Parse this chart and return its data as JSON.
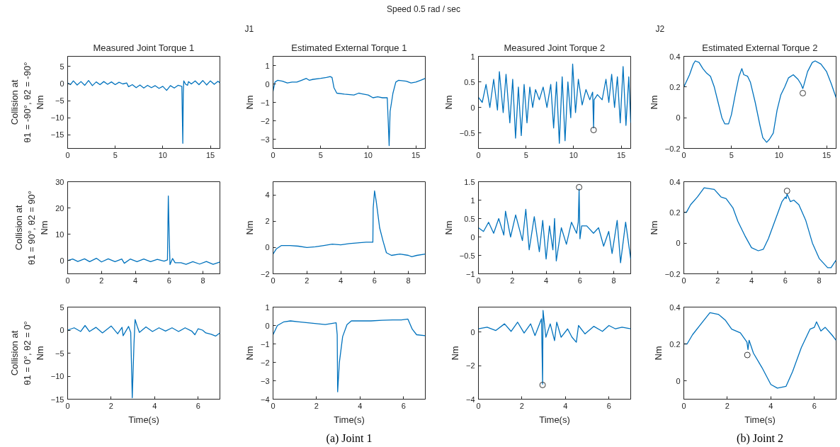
{
  "chart_data": [
    {
      "type": "line",
      "title": "Measured Joint Torque 1",
      "ylabel": "Collision at\nθ1 = -90°, θ2 = -90°\nNm",
      "xlim": [
        0,
        16
      ],
      "xticks": [
        0,
        5,
        10,
        15
      ],
      "ylim": [
        -19,
        8
      ],
      "yticks": [
        -15,
        -10,
        -5,
        0,
        5
      ],
      "series": [
        {
          "color": "#0072bd",
          "x": [
            0,
            0.3,
            0.6,
            1,
            1.4,
            1.8,
            2.2,
            2.6,
            3,
            3.4,
            3.8,
            4.2,
            4.6,
            5,
            5.4,
            5.8,
            6.2,
            6.4,
            6.8,
            7.2,
            7.6,
            8,
            8.4,
            8.8,
            9.2,
            9.6,
            10,
            10.4,
            10.8,
            11.2,
            11.6,
            12,
            12.1,
            12.15,
            12.2,
            12.4,
            12.6,
            12.7,
            13,
            13.4,
            13.8,
            14.2,
            14.6,
            15,
            15.4,
            15.8,
            16
          ],
          "values": [
            0.2,
            -0.3,
            0.8,
            -0.4,
            0.6,
            -0.5,
            0.9,
            -0.6,
            0.5,
            -0.3,
            0.6,
            -0.2,
            0.5,
            -0.3,
            0.4,
            -0.1,
            0.2,
            -0.9,
            -0.3,
            -1.2,
            -0.4,
            -1.3,
            -0.5,
            -1.2,
            -0.6,
            -1.4,
            -0.8,
            -2.0,
            -0.6,
            -1.3,
            -0.5,
            -0.8,
            -17.5,
            -3,
            0.8,
            -0.2,
            -0.5,
            0.6,
            -0.1,
            0.8,
            -0.3,
            0.9,
            -0.4,
            0.8,
            -0.2,
            0.7,
            0.2
          ]
        }
      ]
    },
    {
      "type": "line",
      "title": "Estimated External Torque 1",
      "ylabel": "Nm",
      "annotations": [
        "J1"
      ],
      "xlim": [
        0,
        16
      ],
      "xticks": [
        0,
        5,
        10,
        15
      ],
      "ylim": [
        -3.5,
        1.5
      ],
      "yticks": [
        -3,
        -2,
        -1,
        0,
        1
      ],
      "series": [
        {
          "color": "#0072bd",
          "x": [
            0,
            0.2,
            0.5,
            1,
            1.5,
            2,
            2.5,
            3,
            3.5,
            3.8,
            4.2,
            5,
            5.6,
            6,
            6.2,
            6.4,
            6.7,
            7.5,
            8.5,
            9,
            9.5,
            10,
            10.5,
            11,
            11.5,
            12,
            12.1,
            12.2,
            12.3,
            12.6,
            12.9,
            13.2,
            14,
            14.5,
            15,
            15.5,
            16
          ],
          "values": [
            -0.4,
            0.1,
            0.2,
            0.15,
            0.05,
            0.1,
            0.1,
            0.2,
            0.3,
            0.2,
            0.25,
            0.3,
            0.35,
            0.4,
            0.35,
            -0.2,
            -0.5,
            -0.55,
            -0.6,
            -0.5,
            -0.55,
            -0.6,
            -0.75,
            -0.7,
            -0.75,
            -0.75,
            -2,
            -3.35,
            -1.5,
            -0.5,
            0.1,
            0.2,
            0.15,
            0.05,
            0.1,
            0.2,
            0.3
          ]
        }
      ]
    },
    {
      "type": "line",
      "title": "Measured Joint Torque 2",
      "ylabel": "Nm",
      "annotations": [
        "Speed 0.5 rad / sec"
      ],
      "xlim": [
        0,
        16
      ],
      "xticks": [
        0,
        5,
        10,
        15
      ],
      "ylim": [
        -0.8,
        1
      ],
      "yticks": [
        -0.5,
        0,
        0.5,
        1
      ],
      "series": [
        {
          "color": "#0072bd",
          "x": [
            0,
            0.4,
            0.8,
            1.2,
            1.6,
            2,
            2.2,
            2.6,
            2.9,
            3.3,
            3.6,
            3.9,
            4.2,
            4.5,
            4.8,
            5.1,
            5.4,
            5.7,
            6,
            6.4,
            6.8,
            7.2,
            7.6,
            7.9,
            8.2,
            8.5,
            8.8,
            9.1,
            9.4,
            9.7,
            9.9,
            10.2,
            10.5,
            10.9,
            11.3,
            11.7,
            12,
            12.1,
            12.15,
            12.5,
            13,
            13.4,
            13.7,
            14,
            14.3,
            14.6,
            14.9,
            15.2,
            15.5,
            15.8,
            16
          ],
          "values": [
            0.2,
            0.1,
            0.45,
            0.0,
            0.55,
            -0.05,
            0.7,
            -0.1,
            0.65,
            -0.3,
            0.55,
            -0.6,
            0.4,
            -0.55,
            0.45,
            -0.3,
            0.4,
            0.0,
            0.35,
            0.15,
            0.4,
            0.0,
            0.45,
            -0.4,
            0.5,
            -0.7,
            0.6,
            -0.65,
            0.5,
            -0.2,
            0.85,
            -0.1,
            0.55,
            0.05,
            0.35,
            0.15,
            0.3,
            -0.4,
            0.15,
            0.25,
            0.15,
            0.55,
            0.1,
            0.65,
            0.0,
            0.6,
            -0.3,
            0.8,
            -0.35,
            0.6,
            -0.3
          ]
        },
        {
          "type": "scatter",
          "marker": "circle",
          "color": "#333333",
          "x": [
            12.1
          ],
          "values": [
            -0.44
          ]
        }
      ]
    },
    {
      "type": "line",
      "title": "Estimated External Torque 2",
      "ylabel": "Nm",
      "annotations": [
        "J2"
      ],
      "xlim": [
        0,
        16
      ],
      "xticks": [
        0,
        5,
        10,
        15
      ],
      "ylim": [
        -0.2,
        0.4
      ],
      "yticks": [
        -0.2,
        0,
        0.2,
        0.4
      ],
      "series": [
        {
          "color": "#0072bd",
          "x": [
            0,
            0.3,
            0.6,
            1,
            1.2,
            1.6,
            2,
            2.4,
            2.8,
            3.2,
            3.6,
            4,
            4.3,
            4.7,
            5,
            5.4,
            5.8,
            6.1,
            6.3,
            6.7,
            7,
            7.5,
            8,
            8.3,
            8.7,
            9,
            9.4,
            9.8,
            10.2,
            10.6,
            11,
            11.5,
            12,
            12.3,
            12.5,
            12.6,
            13,
            13.5,
            13.8,
            14.4,
            15,
            15.5,
            16
          ],
          "values": [
            0.2,
            0.24,
            0.28,
            0.35,
            0.37,
            0.36,
            0.32,
            0.29,
            0.27,
            0.2,
            0.1,
            0.0,
            -0.04,
            -0.04,
            0.02,
            0.15,
            0.27,
            0.32,
            0.28,
            0.27,
            0.23,
            0.1,
            -0.05,
            -0.13,
            -0.16,
            -0.14,
            -0.1,
            0.05,
            0.15,
            0.2,
            0.26,
            0.28,
            0.25,
            0.22,
            0.19,
            0.21,
            0.3,
            0.36,
            0.37,
            0.35,
            0.3,
            0.22,
            0.13
          ]
        },
        {
          "type": "scatter",
          "marker": "circle",
          "color": "#333333",
          "x": [
            12.5
          ],
          "values": [
            0.16
          ]
        }
      ]
    },
    {
      "type": "line",
      "ylabel": "Collision at\nθ1 = 90°, θ2 = 90°\nNm",
      "xlim": [
        0,
        9
      ],
      "xticks": [
        0,
        2,
        4,
        6,
        8
      ],
      "ylim": [
        -5,
        30
      ],
      "yticks": [
        0,
        10,
        20,
        30
      ],
      "series": [
        {
          "color": "#0072bd",
          "x": [
            0,
            0.3,
            0.6,
            1,
            1.3,
            1.7,
            2,
            2.4,
            2.8,
            3.2,
            3.35,
            3.7,
            4.1,
            4.5,
            4.9,
            5.3,
            5.7,
            5.9,
            5.95,
            6.0,
            6.05,
            6.2,
            6.35,
            6.7,
            7,
            7.4,
            7.8,
            8.2,
            8.6,
            9
          ],
          "values": [
            0,
            0.6,
            -0.3,
            0.7,
            -0.4,
            0.9,
            -0.5,
            0.7,
            -0.4,
            0.6,
            -1.0,
            0.6,
            -0.4,
            0.6,
            -0.4,
            0.5,
            -0.2,
            0.3,
            24.6,
            10,
            -1.5,
            0.8,
            -0.8,
            -0.8,
            -1.4,
            -0.4,
            -1.3,
            -0.3,
            -1.4,
            -0.5
          ]
        }
      ]
    },
    {
      "type": "line",
      "ylabel": "Nm",
      "xlim": [
        0,
        9
      ],
      "xticks": [
        0,
        2,
        4,
        6,
        8
      ],
      "ylim": [
        -2,
        5
      ],
      "yticks": [
        -2,
        0,
        2,
        4
      ],
      "series": [
        {
          "color": "#0072bd",
          "x": [
            0,
            0.2,
            0.5,
            1,
            1.5,
            2,
            2.5,
            3,
            3.5,
            4,
            4.5,
            5,
            5.5,
            5.9,
            5.92,
            6.0,
            6.1,
            6.3,
            6.5,
            6.7,
            7,
            7.5,
            8,
            8.2,
            8.5,
            9
          ],
          "values": [
            -0.5,
            -0.1,
            0.15,
            0.15,
            0.1,
            0.0,
            0.05,
            0.15,
            0.25,
            0.2,
            0.3,
            0.35,
            0.4,
            0.4,
            3,
            4.3,
            3.5,
            1.5,
            0.5,
            -0.4,
            -0.6,
            -0.5,
            -0.6,
            -0.7,
            -0.6,
            -0.5
          ]
        }
      ]
    },
    {
      "type": "line",
      "ylabel": "Nm",
      "xlim": [
        0,
        9
      ],
      "xticks": [
        0,
        2,
        4,
        6,
        8
      ],
      "ylim": [
        -1,
        1.5
      ],
      "yticks": [
        -1,
        -0.5,
        0,
        0.5,
        1,
        1.5
      ],
      "series": [
        {
          "color": "#0072bd",
          "x": [
            0,
            0.3,
            0.6,
            0.9,
            1.2,
            1.5,
            1.6,
            1.9,
            2.2,
            2.6,
            2.8,
            3,
            3.3,
            3.6,
            3.8,
            4.0,
            4.2,
            4.4,
            4.5,
            4.6,
            4.9,
            5.2,
            5.5,
            5.8,
            5.9,
            5.95,
            6.0,
            6.1,
            6.4,
            6.8,
            7.1,
            7.4,
            7.7,
            7.9,
            8.2,
            8.4,
            8.7,
            9
          ],
          "values": [
            0.25,
            0.15,
            0.4,
            0.1,
            0.5,
            0.05,
            0.7,
            0.0,
            0.6,
            -0.1,
            0.75,
            -0.35,
            0.55,
            -0.4,
            0.45,
            -0.6,
            0.3,
            -0.35,
            0.5,
            -0.65,
            0.25,
            -0.2,
            0.4,
            0.1,
            0.4,
            1.3,
            -0.05,
            0.3,
            0.3,
            0.1,
            0.25,
            -0.25,
            0.15,
            -0.45,
            0.45,
            -0.7,
            0.4,
            -0.6
          ]
        },
        {
          "type": "scatter",
          "marker": "circle",
          "color": "#333333",
          "x": [
            5.95
          ],
          "values": [
            1.35
          ]
        }
      ]
    },
    {
      "type": "line",
      "ylabel": "Nm",
      "xlim": [
        0,
        9
      ],
      "xticks": [
        0,
        2,
        4,
        6,
        8
      ],
      "ylim": [
        -0.2,
        0.4
      ],
      "yticks": [
        -0.2,
        0,
        0.2,
        0.4
      ],
      "series": [
        {
          "color": "#0072bd",
          "x": [
            0,
            0.15,
            0.4,
            0.8,
            1.2,
            1.8,
            2.2,
            2.5,
            2.9,
            3.2,
            3.6,
            4.0,
            4.4,
            4.7,
            5,
            5.4,
            5.8,
            6.0,
            6.05,
            6.1,
            6.3,
            6.5,
            6.8,
            7.2,
            7.6,
            8,
            8.5,
            8.7,
            9
          ],
          "values": [
            0.2,
            0.2,
            0.25,
            0.3,
            0.36,
            0.35,
            0.3,
            0.29,
            0.23,
            0.14,
            0.05,
            -0.03,
            -0.05,
            -0.04,
            0.03,
            0.15,
            0.27,
            0.3,
            0.29,
            0.32,
            0.27,
            0.28,
            0.25,
            0.15,
            0.0,
            -0.1,
            -0.16,
            -0.16,
            -0.11
          ]
        },
        {
          "type": "scatter",
          "marker": "circle",
          "color": "#333333",
          "x": [
            6.1
          ],
          "values": [
            0.34
          ]
        }
      ]
    },
    {
      "type": "line",
      "xlabel": "Time(s)",
      "ylabel": "Collision at\nθ1 = 0°, θ2 = 0°\nNm",
      "xlim": [
        0,
        7
      ],
      "xticks": [
        0,
        2,
        4,
        6
      ],
      "ylim": [
        -15,
        5
      ],
      "yticks": [
        -15,
        -10,
        -5,
        0,
        5
      ],
      "series": [
        {
          "color": "#0072bd",
          "x": [
            0,
            0.3,
            0.6,
            0.8,
            1.0,
            1.3,
            1.6,
            2,
            2.3,
            2.5,
            2.55,
            2.8,
            2.9,
            2.97,
            3.05,
            3.1,
            3.2,
            3.3,
            3.6,
            3.9,
            4.2,
            4.5,
            4.8,
            5.1,
            5.4,
            5.7,
            5.85,
            6,
            6.2,
            6.35,
            6.6,
            6.8,
            7
          ],
          "values": [
            0,
            0.5,
            -0.3,
            1.0,
            -0.3,
            0.6,
            -0.6,
            0.9,
            -0.8,
            0.6,
            -1.2,
            0.8,
            -0.5,
            -14.7,
            -3,
            2.3,
            0.8,
            -0.5,
            0.7,
            -0.3,
            0.5,
            -0.2,
            0.5,
            -0.3,
            0.5,
            -0.2,
            -1.0,
            0.3,
            0.0,
            -0.6,
            -0.9,
            -1.3,
            -0.6
          ]
        }
      ]
    },
    {
      "type": "line",
      "xlabel": "Time(s)",
      "ylabel": "Nm",
      "annotations": [
        "(a) Joint 1"
      ],
      "xlim": [
        0,
        7
      ],
      "xticks": [
        0,
        2,
        4,
        6
      ],
      "ylim": [
        -4,
        1
      ],
      "yticks": [
        -4,
        -3,
        -2,
        -1,
        0,
        1
      ],
      "series": [
        {
          "color": "#0072bd",
          "x": [
            0,
            0.2,
            0.5,
            0.8,
            1.2,
            1.6,
            2,
            2.4,
            2.9,
            2.95,
            2.97,
            3.05,
            3.2,
            3.4,
            3.6,
            4,
            4.5,
            5,
            5.5,
            5.9,
            6.2,
            6.4,
            6.6,
            7
          ],
          "values": [
            -0.5,
            0.0,
            0.2,
            0.25,
            0.2,
            0.15,
            0.1,
            0.05,
            0.15,
            -0.5,
            -3.6,
            -2,
            -0.6,
            0.05,
            0.25,
            0.25,
            0.25,
            0.28,
            0.3,
            0.3,
            0.35,
            -0.2,
            -0.5,
            -0.55
          ]
        }
      ]
    },
    {
      "type": "line",
      "xlabel": "Time(s)",
      "ylabel": "Nm",
      "xlim": [
        0,
        7
      ],
      "xticks": [
        0,
        2,
        4,
        6
      ],
      "ylim": [
        -4,
        1.5
      ],
      "yticks": [
        -4,
        -2,
        0
      ],
      "series": [
        {
          "color": "#0072bd",
          "x": [
            0,
            0.4,
            0.8,
            1.2,
            1.5,
            1.8,
            2.1,
            2.4,
            2.6,
            2.9,
            2.95,
            2.97,
            3.1,
            3.3,
            3.5,
            3.6,
            3.8,
            4.1,
            4.3,
            4.5,
            4.6,
            4.9,
            5.3,
            5.7,
            6,
            6.3,
            6.6,
            7
          ],
          "values": [
            0.2,
            0.3,
            0.1,
            0.5,
            0.05,
            0.6,
            -0.05,
            0.5,
            -0.2,
            0.8,
            -3.1,
            1.3,
            -0.3,
            0.5,
            -0.5,
            0.6,
            -0.3,
            0.2,
            -0.3,
            -0.6,
            0.4,
            -0.1,
            0.35,
            0.05,
            0.4,
            0.2,
            0.3,
            0.2
          ]
        },
        {
          "type": "scatter",
          "marker": "circle",
          "color": "#333333",
          "x": [
            2.95
          ],
          "values": [
            -3.15
          ]
        }
      ]
    },
    {
      "type": "line",
      "xlabel": "Time(s)",
      "ylabel": "Nm",
      "annotations": [
        "(b) Joint 2"
      ],
      "xlim": [
        0,
        7
      ],
      "xticks": [
        0,
        2,
        4,
        6
      ],
      "ylim": [
        -0.1,
        0.4
      ],
      "yticks": [
        0,
        0.2,
        0.4
      ],
      "series": [
        {
          "color": "#0072bd",
          "x": [
            0,
            0.15,
            0.4,
            0.8,
            1.2,
            1.6,
            1.9,
            2.2,
            2.6,
            2.9,
            2.95,
            3.0,
            3.2,
            3.6,
            4,
            4.3,
            4.7,
            5,
            5.4,
            5.8,
            6,
            6.1,
            6.3,
            6.5,
            6.8,
            7
          ],
          "values": [
            0.2,
            0.2,
            0.25,
            0.31,
            0.37,
            0.36,
            0.33,
            0.28,
            0.26,
            0.21,
            0.17,
            0.22,
            0.15,
            0.07,
            -0.02,
            -0.04,
            -0.03,
            0.05,
            0.18,
            0.28,
            0.29,
            0.32,
            0.27,
            0.29,
            0.25,
            0.22
          ]
        },
        {
          "type": "scatter",
          "marker": "circle",
          "color": "#333333",
          "x": [
            2.92
          ],
          "values": [
            0.14
          ]
        }
      ]
    }
  ]
}
